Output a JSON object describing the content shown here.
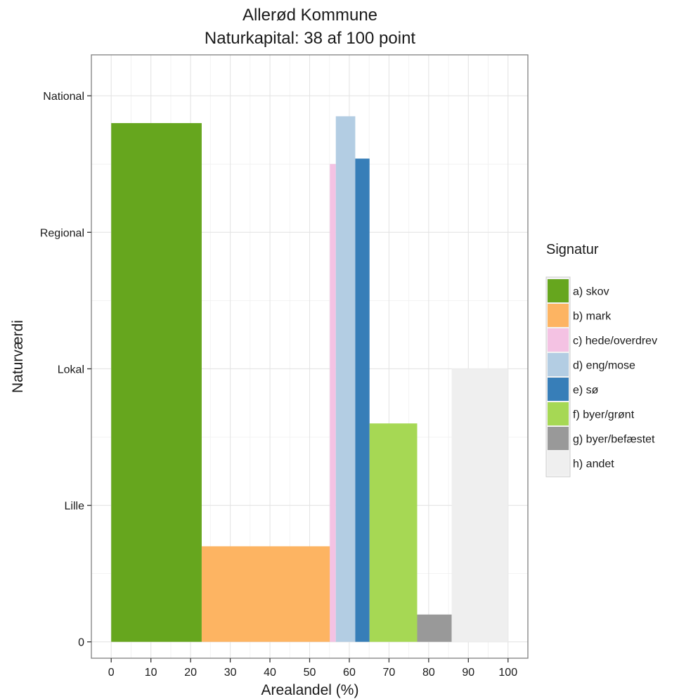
{
  "chart_data": {
    "type": "bar",
    "title": [
      "Allerød Kommune",
      "Naturkapital: 38 af 100 point"
    ],
    "xlabel": "Arealandel (%)",
    "ylabel": "Naturværdi",
    "xlim": [
      -5,
      105
    ],
    "ylim": [
      -0.12,
      4.3
    ],
    "x_ticks": [
      0,
      10,
      20,
      30,
      40,
      50,
      60,
      70,
      80,
      90,
      100
    ],
    "y_ticks": [
      {
        "value": 0,
        "label": "0"
      },
      {
        "value": 1,
        "label": "Lille"
      },
      {
        "value": 2,
        "label": "Lokal"
      },
      {
        "value": 3,
        "label": "Regional"
      },
      {
        "value": 4,
        "label": "National"
      }
    ],
    "grid": true,
    "legend": {
      "title": "Signatur",
      "position": "right",
      "entries": [
        {
          "label": "a) skov",
          "color": "#66a61e"
        },
        {
          "label": "b) mark",
          "color": "#fdb462"
        },
        {
          "label": "c) hede/overdrev",
          "color": "#f4c2e3"
        },
        {
          "label": "d) eng/mose",
          "color": "#b3cde3"
        },
        {
          "label": "e) sø",
          "color": "#377eb8"
        },
        {
          "label": "f) byer/grønt",
          "color": "#a6d854"
        },
        {
          "label": "g) byer/befæstet",
          "color": "#999999"
        },
        {
          "label": "h) andet",
          "color": "#efefef"
        }
      ]
    },
    "bars": [
      {
        "category": "a) skov",
        "x_start": 0,
        "x_end": 22.8,
        "value": 3.8,
        "color": "#66a61e"
      },
      {
        "category": "b) mark",
        "x_start": 22.8,
        "x_end": 55.1,
        "value": 0.7,
        "color": "#fdb462"
      },
      {
        "category": "c) hede/overdrev",
        "x_start": 55.1,
        "x_end": 56.6,
        "value": 3.5,
        "color": "#f4c2e3"
      },
      {
        "category": "d) eng/mose",
        "x_start": 56.6,
        "x_end": 61.5,
        "value": 3.85,
        "color": "#b3cde3"
      },
      {
        "category": "e) sø",
        "x_start": 61.5,
        "x_end": 65.1,
        "value": 3.54,
        "color": "#377eb8"
      },
      {
        "category": "f) byer/grønt",
        "x_start": 65.1,
        "x_end": 77.1,
        "value": 1.6,
        "color": "#a6d854"
      },
      {
        "category": "g) byer/befæstet",
        "x_start": 77.1,
        "x_end": 85.8,
        "value": 0.2,
        "color": "#999999"
      },
      {
        "category": "h) andet",
        "x_start": 85.8,
        "x_end": 100,
        "value": 2.0,
        "color": "#efefef"
      }
    ]
  }
}
